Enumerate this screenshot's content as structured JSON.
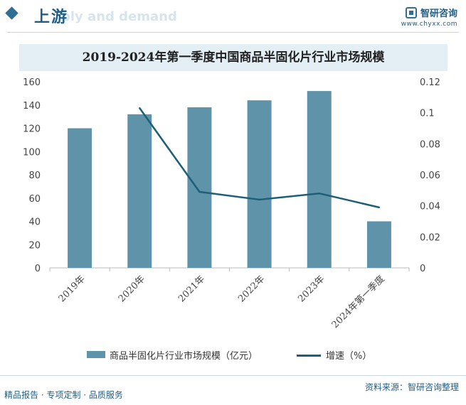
{
  "header": {
    "section_title": "上游",
    "ghost_text": "ply and demand",
    "brand_name": "智研咨询",
    "brand_url": "www.chyxx.com"
  },
  "footer": {
    "tagline": "精品报告 · 专项定制 · 品质服务",
    "source": "资料来源：智研咨询整理"
  },
  "colors": {
    "bar": "#5e93aa",
    "line": "#1e5f78",
    "title_bg": "#e3eef5",
    "brand": "#1f5f86"
  },
  "chart_data": {
    "type": "bar",
    "title": "2019-2024年第一季度中国商品半固化片行业市场规模",
    "categories": [
      "2019年",
      "2020年",
      "2021年",
      "2022年",
      "2023年",
      "2024年第一季度"
    ],
    "series": [
      {
        "name": "商品半固化片行业市场规模（亿元）",
        "type": "bar",
        "axis": "left",
        "values": [
          120,
          132,
          138,
          144,
          152,
          40
        ]
      },
      {
        "name": "增速（%）",
        "type": "line",
        "axis": "right",
        "values": [
          null,
          0.103,
          0.049,
          0.044,
          0.048,
          0.039
        ]
      }
    ],
    "y_left": {
      "min": 0,
      "max": 160,
      "step": 20,
      "ticks": [
        "0",
        "20",
        "40",
        "60",
        "80",
        "100",
        "120",
        "140",
        "160"
      ]
    },
    "y_right": {
      "min": 0,
      "max": 0.12,
      "step": 0.02,
      "ticks": [
        "0",
        "0.02",
        "0.04",
        "0.06",
        "0.08",
        "0.1",
        "0.12"
      ]
    },
    "legend_position": "bottom",
    "grid": false
  }
}
